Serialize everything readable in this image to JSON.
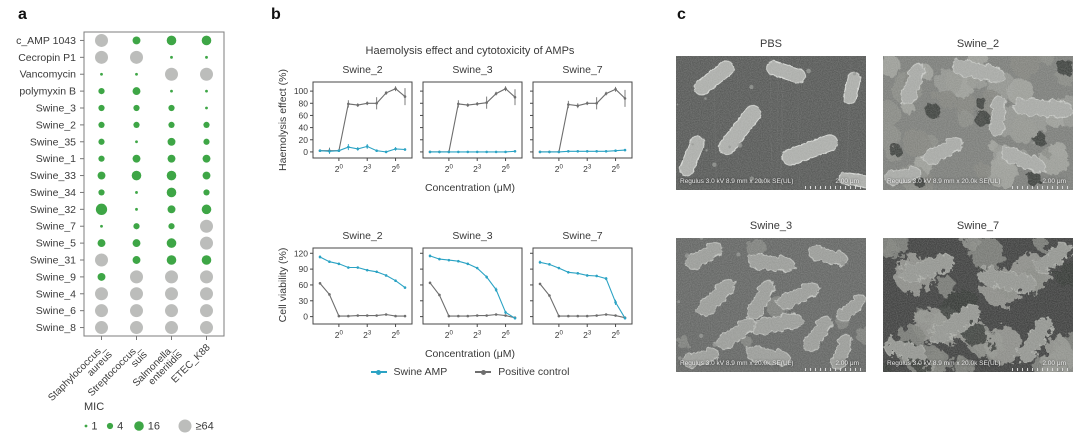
{
  "panel_a": {
    "label": "a",
    "legend": {
      "title": "MIC",
      "items": [
        {
          "label": "1",
          "value": 1
        },
        {
          "label": "4",
          "value": 4
        },
        {
          "label": "16",
          "value": 16
        },
        {
          "label": "≥64",
          "value": 64
        }
      ]
    }
  },
  "panel_b": {
    "label": "b",
    "title": "Haemolysis effect and cytotoxicity of AMPs",
    "xlabel": "Concentration (μM)",
    "legend": [
      {
        "label": "Swine AMP",
        "color": "#2ba3c4"
      },
      {
        "label": "Positive control",
        "color": "#6e6e6e"
      }
    ],
    "series_colors": {
      "Swine AMP": "#2ba3c4",
      "Positive control": "#6e6e6e"
    }
  },
  "panel_c": {
    "label": "c",
    "images": [
      {
        "title": "PBS",
        "caption": "Regulus 3.0 kV 8.9 mm x 20.0k SE(UL)",
        "scale": "2.00 μm",
        "appearance": "intact-rods"
      },
      {
        "title": "Swine_2",
        "caption": "Regulus 3.0 kV 8.9 mm x 20.0k SE(UL)",
        "scale": "2.00 μm",
        "appearance": "damaged-aggregated"
      },
      {
        "title": "Swine_3",
        "caption": "Regulus 3.0 kV 8.9 mm x 20.0k SE(UL)",
        "scale": "2.00 μm",
        "appearance": "partial-rods"
      },
      {
        "title": "Swine_7",
        "caption": "Regulus 3.0 kV 8.9 mm x 20.0k SE(UL)",
        "scale": "2.00 μm",
        "appearance": "severely-damaged"
      }
    ]
  },
  "chart_data": [
    {
      "type": "bubble",
      "panel": "a",
      "value_label": "MIC",
      "colors": {
        "low": "#3ea646",
        "high": "#bcbdbb"
      },
      "high_threshold": 64,
      "columns": [
        {
          "name": "Staphylococcus_aureus",
          "lines": [
            "Staphylococcus_",
            "aureus"
          ]
        },
        {
          "name": "Streptococcus_suis",
          "lines": [
            "Streptococcus_",
            "suis"
          ]
        },
        {
          "name": "Salmonella_enteritidis",
          "lines": [
            "Salmonella_",
            "enteritidis"
          ]
        },
        {
          "name": "ETEC_K88",
          "lines": [
            "ETEC_K88"
          ]
        }
      ],
      "rows": [
        {
          "label": "c_AMP 1043",
          "values": [
            64,
            8,
            16,
            16
          ]
        },
        {
          "label": "Cecropin P1",
          "values": [
            64,
            64,
            1,
            1
          ]
        },
        {
          "label": "Vancomycin",
          "values": [
            1,
            1,
            64,
            64
          ]
        },
        {
          "label": "polymyxin B",
          "values": [
            4,
            8,
            1,
            1
          ]
        },
        {
          "label": "Swine_3",
          "values": [
            4,
            4,
            4,
            1
          ]
        },
        {
          "label": "Swine_2",
          "values": [
            4,
            4,
            4,
            4
          ]
        },
        {
          "label": "Swine_35",
          "values": [
            4,
            1,
            8,
            4
          ]
        },
        {
          "label": "Swine_1",
          "values": [
            4,
            8,
            8,
            8
          ]
        },
        {
          "label": "Swine_33",
          "values": [
            8,
            16,
            16,
            8
          ]
        },
        {
          "label": "Swine_34",
          "values": [
            4,
            1,
            16,
            4
          ]
        },
        {
          "label": "Swine_32",
          "values": [
            32,
            1,
            8,
            16
          ]
        },
        {
          "label": "Swine_7",
          "values": [
            1,
            4,
            4,
            64
          ]
        },
        {
          "label": "Swine_5",
          "values": [
            8,
            8,
            16,
            64
          ]
        },
        {
          "label": "Swine_31",
          "values": [
            64,
            8,
            16,
            16
          ]
        },
        {
          "label": "Swine_9",
          "values": [
            8,
            64,
            64,
            64
          ]
        },
        {
          "label": "Swine_4",
          "values": [
            64,
            64,
            64,
            64
          ]
        },
        {
          "label": "Swine_6",
          "values": [
            64,
            64,
            64,
            64
          ]
        },
        {
          "label": "Swine_8",
          "values": [
            64,
            64,
            64,
            64
          ]
        }
      ]
    },
    {
      "type": "line",
      "panel": "b",
      "id": "haemolysis",
      "ylabel": "Haemolysis effect (%)",
      "yticks": [
        0,
        20,
        40,
        60,
        80,
        100
      ],
      "ylim": [
        -10,
        115
      ],
      "x_base": 2,
      "x_exponents": [
        -2,
        -1,
        0,
        1,
        2,
        3,
        4,
        5,
        6,
        7
      ],
      "xtick_exponents": [
        0,
        3,
        6
      ],
      "subplots": [
        {
          "title": "Swine_2",
          "series": [
            {
              "name": "Positive control",
              "values": [
                2,
                2,
                2,
                79,
                77,
                80,
                80,
                97,
                104,
                91
              ],
              "err": [
                2,
                5,
                2,
                6,
                3,
                3,
                10,
                3,
                4,
                14
              ]
            },
            {
              "name": "Swine AMP",
              "values": [
                2,
                1,
                2,
                8,
                5,
                9,
                2,
                0,
                5,
                4
              ],
              "err": [
                2,
                4,
                2,
                5,
                3,
                4,
                2,
                2,
                3,
                2
              ]
            }
          ]
        },
        {
          "title": "Swine_3",
          "series": [
            {
              "name": "Positive control",
              "values": [
                0,
                0,
                0,
                79,
                77,
                79,
                81,
                96,
                104,
                90
              ],
              "err": [
                1,
                1,
                1,
                6,
                3,
                3,
                10,
                3,
                4,
                13
              ]
            },
            {
              "name": "Swine AMP",
              "values": [
                0,
                0,
                0,
                0,
                0,
                0,
                0,
                0,
                0,
                1
              ],
              "err": [
                1,
                1,
                1,
                1,
                1,
                1,
                1,
                1,
                1,
                1
              ]
            }
          ]
        },
        {
          "title": "Swine_7",
          "series": [
            {
              "name": "Positive control",
              "values": [
                0,
                0,
                0,
                78,
                76,
                80,
                80,
                96,
                103,
                88
              ],
              "err": [
                1,
                1,
                1,
                6,
                4,
                3,
                10,
                3,
                4,
                14
              ]
            },
            {
              "name": "Swine AMP",
              "values": [
                0,
                0,
                0,
                1,
                1,
                1,
                1,
                1,
                2,
                3
              ],
              "err": [
                1,
                1,
                1,
                1,
                1,
                1,
                1,
                1,
                1,
                1
              ]
            }
          ]
        }
      ]
    },
    {
      "type": "line",
      "panel": "b",
      "id": "viability",
      "ylabel": "Cell viability (%)",
      "yticks": [
        0,
        30,
        60,
        90,
        120
      ],
      "ylim": [
        -14,
        130
      ],
      "x_base": 2,
      "x_exponents": [
        -2,
        -1,
        0,
        1,
        2,
        3,
        4,
        5,
        6,
        7
      ],
      "xtick_exponents": [
        0,
        3,
        6
      ],
      "subplots": [
        {
          "title": "Swine_2",
          "series": [
            {
              "name": "Positive control",
              "values": [
                63,
                42,
                1,
                1,
                2,
                2,
                2,
                4,
                1,
                1
              ],
              "err": [
                2,
                2,
                1,
                1,
                1,
                1,
                1,
                1,
                1,
                1
              ]
            },
            {
              "name": "Swine AMP",
              "values": [
                113,
                104,
                100,
                93,
                93,
                88,
                85,
                78,
                68,
                55
              ],
              "err": [
                3,
                2,
                2,
                2,
                2,
                2,
                2,
                2,
                2,
                2
              ]
            }
          ]
        },
        {
          "title": "Swine_3",
          "series": [
            {
              "name": "Positive control",
              "values": [
                64,
                41,
                1,
                1,
                1,
                2,
                2,
                4,
                2,
                -2
              ],
              "err": [
                2,
                2,
                1,
                1,
                1,
                1,
                1,
                1,
                1,
                1
              ]
            },
            {
              "name": "Swine AMP",
              "values": [
                115,
                109,
                107,
                105,
                100,
                92,
                75,
                51,
                8,
                -3
              ],
              "err": [
                3,
                2,
                2,
                2,
                2,
                2,
                3,
                4,
                3,
                2
              ]
            }
          ]
        },
        {
          "title": "Swine_7",
          "series": [
            {
              "name": "Positive control",
              "values": [
                62,
                40,
                1,
                1,
                1,
                1,
                2,
                4,
                2,
                -2
              ],
              "err": [
                2,
                2,
                1,
                1,
                1,
                1,
                1,
                1,
                1,
                1
              ]
            },
            {
              "name": "Swine AMP",
              "values": [
                103,
                99,
                92,
                84,
                82,
                78,
                77,
                72,
                27,
                -3
              ],
              "err": [
                3,
                2,
                2,
                2,
                2,
                2,
                2,
                3,
                5,
                2
              ]
            }
          ]
        }
      ]
    }
  ]
}
